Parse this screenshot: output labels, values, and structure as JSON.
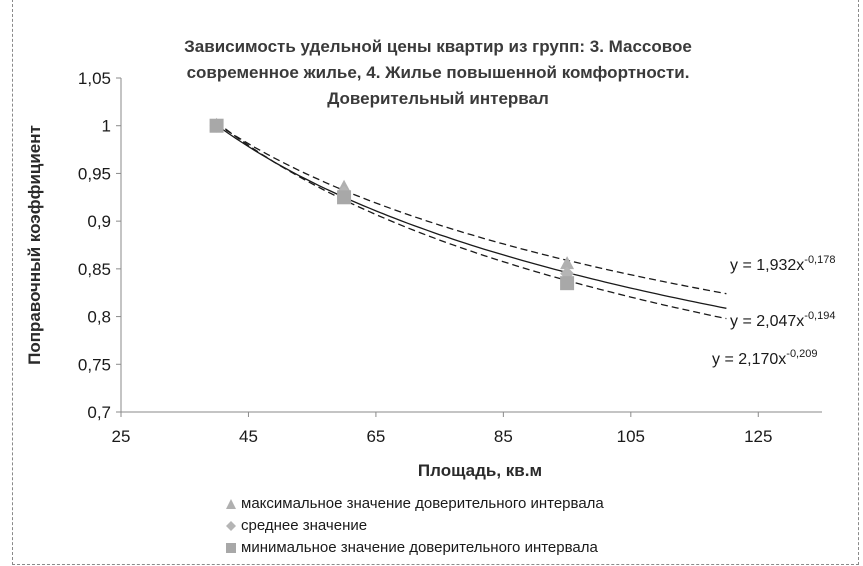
{
  "chart_data": {
    "type": "scatter",
    "title_lines": [
      "Зависимость удельной цены квартир из групп: 3.  Массовое",
      "современное жилье, 4. Жилье повышенной комфортности.",
      "Доверительный интервал"
    ],
    "xlabel": "Площадь, кв.м",
    "ylabel": "Поправочный коэффициент",
    "xlim": [
      25,
      135
    ],
    "ylim": [
      0.7,
      1.05
    ],
    "xticks": [
      25,
      45,
      65,
      85,
      105,
      125
    ],
    "yticks": [
      0.7,
      0.75,
      0.8,
      0.85,
      0.9,
      0.95,
      1,
      1.05
    ],
    "xtick_labels": [
      "25",
      "45",
      "65",
      "85",
      "105",
      "125"
    ],
    "ytick_labels": [
      "0,7",
      "0,75",
      "0,8",
      "0,85",
      "0,9",
      "0,95",
      "1",
      "1,05"
    ],
    "grid": false,
    "legend_position": "bottom",
    "series": [
      {
        "name": "максимальное значение доверительного интервала",
        "marker": "triangle",
        "color": "#b0b0b0",
        "x": [
          40,
          60,
          95
        ],
        "y": [
          1.0,
          0.935,
          0.855
        ]
      },
      {
        "name": "среднее значение",
        "marker": "diamond",
        "color": "#b5b5b5",
        "x": [
          40,
          60,
          95
        ],
        "y": [
          1.0,
          0.93,
          0.845
        ]
      },
      {
        "name": "минимальное значение доверительного интервала",
        "marker": "square",
        "color": "#a8a8a8",
        "x": [
          40,
          60,
          95
        ],
        "y": [
          1.0,
          0.925,
          0.835
        ]
      }
    ],
    "trendlines": [
      {
        "style": "dashed",
        "coef": 1.932,
        "exp": -0.178,
        "label_coef": "1,932",
        "label_exp": "-0,178",
        "x_range": [
          40,
          120
        ]
      },
      {
        "style": "solid",
        "coef": 2.047,
        "exp": -0.194,
        "label_coef": "2,047",
        "label_exp": "-0,194",
        "x_range": [
          40,
          120
        ]
      },
      {
        "style": "dashed",
        "coef": 2.17,
        "exp": -0.209,
        "label_coef": "2,170",
        "label_exp": "-0,209",
        "x_range": [
          40,
          120
        ]
      }
    ],
    "equation_prefix": "y = ",
    "equation_var": "x"
  }
}
